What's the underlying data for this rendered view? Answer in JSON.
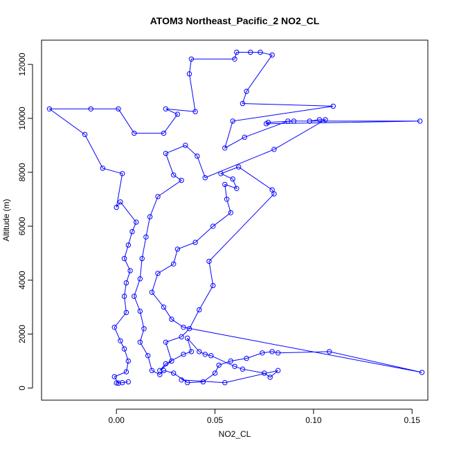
{
  "chart_data": {
    "type": "line",
    "title": "ATOM3 Northeast_Pacific_2 NO2_CL",
    "xlabel": "NO2_CL",
    "ylabel": "Altitude (m)",
    "xlim": [
      -0.038,
      0.158
    ],
    "ylim": [
      -450,
      12900
    ],
    "x_ticks": [
      0.0,
      0.05,
      0.1,
      0.15
    ],
    "x_tick_labels": [
      "0.00",
      "0.05",
      "0.10",
      "0.15"
    ],
    "y_ticks": [
      0,
      2000,
      4000,
      6000,
      8000,
      10000,
      12000
    ],
    "y_tick_labels": [
      "0",
      "2000",
      "4000",
      "6000",
      "8000",
      "10000",
      "12000"
    ],
    "grid": false,
    "line_color": "#0000ff",
    "marker": "open-circle",
    "series": [
      {
        "points": [
          [
            0.0,
            190
          ],
          [
            0.003,
            200
          ],
          [
            0.006,
            230
          ],
          [
            0.001,
            180
          ],
          [
            -0.001,
            420
          ],
          [
            0.005,
            600
          ],
          [
            0.006,
            1000
          ],
          [
            0.004,
            1450
          ],
          [
            0.002,
            1750
          ],
          [
            -0.001,
            2250
          ],
          [
            0.005,
            2800
          ],
          [
            0.004,
            3400
          ],
          [
            0.005,
            3900
          ],
          [
            0.007,
            4350
          ],
          [
            0.004,
            4800
          ],
          [
            0.006,
            5300
          ],
          [
            0.008,
            5800
          ],
          [
            0.01,
            6150
          ],
          [
            0.002,
            6900
          ],
          [
            0.0,
            6700
          ],
          [
            0.003,
            7950
          ],
          [
            -0.007,
            8150
          ],
          [
            -0.016,
            9400
          ],
          [
            -0.034,
            10350
          ],
          [
            -0.013,
            10350
          ],
          [
            0.001,
            10350
          ],
          [
            0.009,
            9450
          ],
          [
            0.024,
            9450
          ],
          [
            0.031,
            10150
          ],
          [
            0.025,
            10350
          ],
          [
            0.04,
            10250
          ],
          [
            0.037,
            11650
          ],
          [
            0.038,
            12200
          ],
          [
            0.06,
            12200
          ],
          [
            0.061,
            12450
          ],
          [
            0.068,
            12450
          ],
          [
            0.073,
            12450
          ],
          [
            0.079,
            12350
          ],
          [
            0.066,
            11000
          ],
          [
            0.064,
            10550
          ],
          [
            0.11,
            10450
          ],
          [
            0.059,
            9900
          ],
          [
            0.055,
            8900
          ],
          [
            0.065,
            9300
          ],
          [
            0.087,
            9900
          ],
          [
            0.154,
            9900
          ],
          [
            0.076,
            9800
          ],
          [
            0.077,
            9850
          ],
          [
            0.09,
            9900
          ],
          [
            0.098,
            9900
          ],
          [
            0.103,
            9950
          ],
          [
            0.106,
            9950
          ],
          [
            0.08,
            8850
          ],
          [
            0.045,
            7800
          ],
          [
            0.041,
            8600
          ],
          [
            0.035,
            9000
          ],
          [
            0.025,
            8700
          ],
          [
            0.029,
            7900
          ],
          [
            0.033,
            7700
          ],
          [
            0.021,
            7100
          ],
          [
            0.017,
            6350
          ],
          [
            0.015,
            5600
          ],
          [
            0.013,
            4800
          ],
          [
            0.012,
            4050
          ],
          [
            0.009,
            3400
          ],
          [
            0.012,
            2850
          ],
          [
            0.014,
            2200
          ],
          [
            0.012,
            1700
          ],
          [
            0.016,
            1200
          ],
          [
            0.018,
            650
          ],
          [
            0.022,
            500
          ],
          [
            0.024,
            650
          ],
          [
            0.029,
            550
          ],
          [
            0.036,
            200
          ],
          [
            0.044,
            230
          ],
          [
            0.05,
            550
          ],
          [
            0.052,
            850
          ],
          [
            0.058,
            1000
          ],
          [
            0.066,
            1100
          ],
          [
            0.074,
            1300
          ],
          [
            0.079,
            1350
          ],
          [
            0.082,
            1300
          ],
          [
            0.108,
            1350
          ],
          [
            0.155,
            580
          ],
          [
            0.034,
            2250
          ],
          [
            0.028,
            2550
          ],
          [
            0.024,
            3000
          ],
          [
            0.018,
            3550
          ],
          [
            0.021,
            4250
          ],
          [
            0.029,
            4600
          ],
          [
            0.031,
            5150
          ],
          [
            0.04,
            5400
          ],
          [
            0.049,
            6000
          ],
          [
            0.058,
            6500
          ],
          [
            0.056,
            7000
          ],
          [
            0.055,
            7550
          ],
          [
            0.061,
            7400
          ],
          [
            0.059,
            7750
          ],
          [
            0.053,
            7950
          ],
          [
            0.062,
            8200
          ],
          [
            0.079,
            7350
          ],
          [
            0.08,
            7200
          ],
          [
            0.047,
            4700
          ],
          [
            0.049,
            3800
          ],
          [
            0.042,
            2900
          ],
          [
            0.037,
            2200
          ],
          [
            0.033,
            1900
          ],
          [
            0.025,
            1700
          ],
          [
            0.028,
            1000
          ],
          [
            0.022,
            650
          ],
          [
            0.025,
            900
          ],
          [
            0.034,
            1250
          ],
          [
            0.038,
            1350
          ],
          [
            0.036,
            1850
          ],
          [
            0.042,
            1350
          ],
          [
            0.045,
            1250
          ],
          [
            0.048,
            1200
          ],
          [
            0.06,
            800
          ],
          [
            0.064,
            700
          ],
          [
            0.075,
            550
          ],
          [
            0.078,
            400
          ],
          [
            0.082,
            650
          ],
          [
            0.055,
            200
          ],
          [
            0.033,
            300
          ]
        ]
      }
    ]
  }
}
